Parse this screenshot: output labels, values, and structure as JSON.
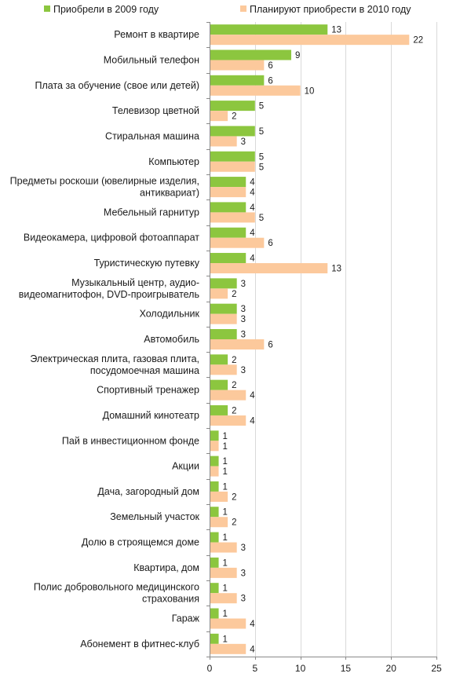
{
  "chart_data": {
    "type": "bar",
    "orientation": "horizontal",
    "categories": [
      "Ремонт в квартире",
      "Мобильный телефон",
      "Плата за обучение (свое или детей)",
      "Телевизор цветной",
      "Стиральная машина",
      "Компьютер",
      "Предметы роскоши (ювелирные изделия, антиквариат)",
      "Мебельный гарнитур",
      "Видеокамера, цифровой фотоаппарат",
      "Туристическую путевку",
      "Музыкальный центр, аудио- видеомагнитофон, DVD-проигрыватель",
      "Холодильник",
      "Автомобиль",
      "Электрическая плита, газовая плита, посудомоечная машина",
      "Спортивный тренажер",
      "Домашний кинотеатр",
      "Пай  в инвестиционном фонде",
      "Акции",
      "Дача, загородный дом",
      "Земельный участок",
      "Долю в строящемся доме",
      "Квартира, дом",
      "Полис добровольного медицинского страхования",
      "Гараж",
      "Абонемент в фитнес-клуб"
    ],
    "category_lines": [
      [
        "Ремонт в квартире"
      ],
      [
        "Мобильный телефон"
      ],
      [
        "Плата за обучение (свое или детей)"
      ],
      [
        "Телевизор цветной"
      ],
      [
        "Стиральная машина"
      ],
      [
        "Компьютер"
      ],
      [
        "Предметы роскоши (ювелирные изделия,",
        "антиквариат)"
      ],
      [
        "Мебельный гарнитур"
      ],
      [
        "Видеокамера, цифровой фотоаппарат"
      ],
      [
        "Туристическую путевку"
      ],
      [
        "Музыкальный центр, аудио-",
        "видеомагнитофон, DVD-проигрыватель"
      ],
      [
        "Холодильник"
      ],
      [
        "Автомобиль"
      ],
      [
        "Электрическая плита, газовая плита,",
        "посудомоечная машина"
      ],
      [
        "Спортивный тренажер"
      ],
      [
        "Домашний кинотеатр"
      ],
      [
        "Пай  в инвестиционном фонде"
      ],
      [
        "Акции"
      ],
      [
        "Дача, загородный дом"
      ],
      [
        "Земельный участок"
      ],
      [
        "Долю в строящемся доме"
      ],
      [
        "Квартира, дом"
      ],
      [
        "Полис добровольного медицинского",
        "страхования"
      ],
      [
        "Гараж"
      ],
      [
        "Абонемент в фитнес-клуб"
      ]
    ],
    "series": [
      {
        "name": "Приобрели в 2009 году",
        "color": "#8cc63f",
        "values": [
          13,
          9,
          6,
          5,
          5,
          5,
          4,
          4,
          4,
          4,
          3,
          3,
          3,
          2,
          2,
          2,
          1,
          1,
          1,
          1,
          1,
          1,
          1,
          1,
          1
        ]
      },
      {
        "name": "Планируют приобрести в 2010 году",
        "color": "#fcc99c",
        "values": [
          22,
          6,
          10,
          2,
          3,
          5,
          4,
          5,
          6,
          13,
          2,
          3,
          6,
          3,
          4,
          4,
          1,
          1,
          2,
          2,
          3,
          3,
          3,
          4,
          4
        ]
      }
    ],
    "xlim": [
      0,
      25
    ],
    "x_ticks": [
      "0",
      "5",
      "10",
      "15",
      "20",
      "25"
    ],
    "grid": true,
    "legend_position": "top",
    "axis_color": "#898989",
    "grid_color": "#d9d9d9"
  }
}
